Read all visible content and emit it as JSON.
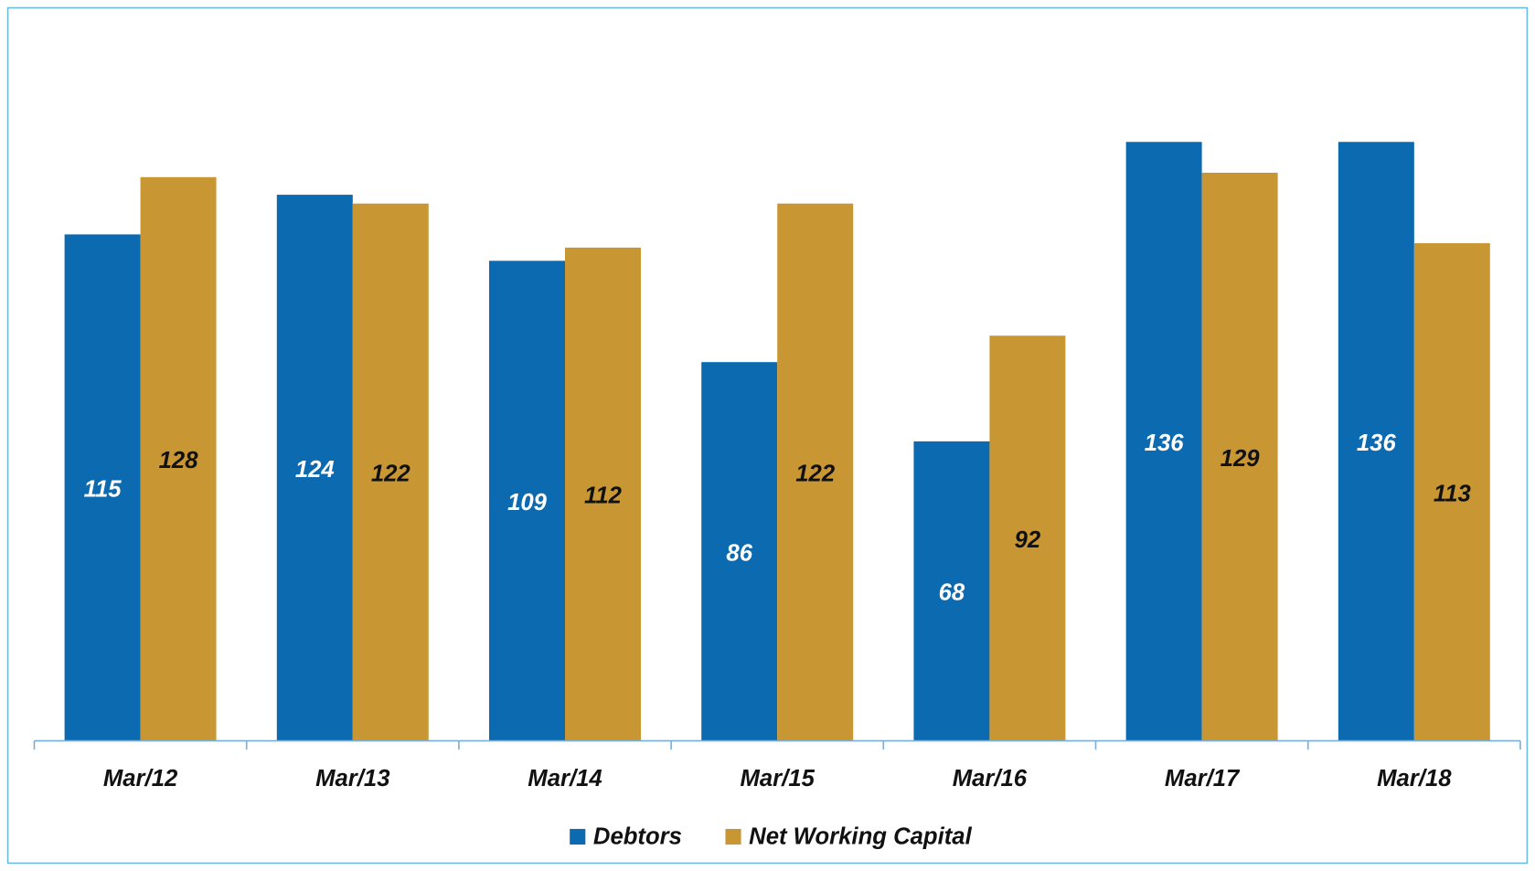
{
  "chart_data": {
    "type": "bar",
    "categories": [
      "Mar/12",
      "Mar/13",
      "Mar/14",
      "Mar/15",
      "Mar/16",
      "Mar/17",
      "Mar/18"
    ],
    "series": [
      {
        "name": "Debtors",
        "color": "#0c6ab0",
        "values": [
          115,
          124,
          109,
          86,
          68,
          136,
          136
        ]
      },
      {
        "name": "Net Working Capital",
        "color": "#c89733",
        "values": [
          128,
          122,
          112,
          122,
          92,
          129,
          113
        ]
      }
    ],
    "ylim": [
      0,
      150
    ],
    "legend": "bottom"
  }
}
